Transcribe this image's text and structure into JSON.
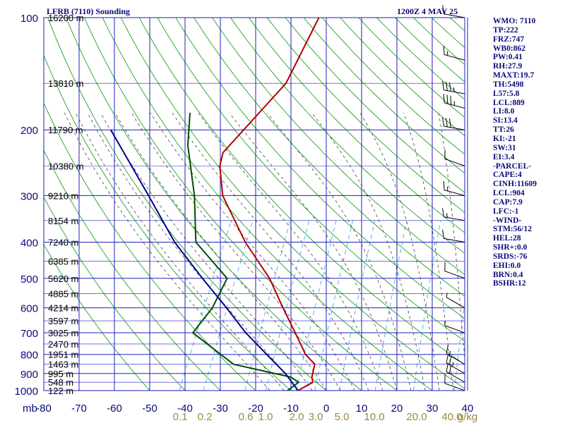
{
  "header": {
    "station_title": "LFRB (7110) Sounding",
    "datetime": "1200Z  4 MAY 25"
  },
  "chart_data": {
    "type": "line",
    "title": "LFRB (7110) Sounding",
    "diagram": "Skew-T log-P",
    "y_axis": {
      "quantity": "pressure",
      "unit_label": "mb",
      "scale": "log",
      "inverted": true,
      "ticks": [
        100,
        200,
        300,
        400,
        500,
        600,
        700,
        800,
        900,
        1000
      ],
      "range": [
        100,
        1000
      ]
    },
    "x_axis": {
      "quantity": "temperature",
      "unit": "°C",
      "ticks": [
        -80,
        -70,
        -60,
        -50,
        -40,
        -30,
        -20,
        -10,
        0,
        10,
        20,
        30,
        40
      ],
      "tick_labels": [
        "-80",
        "-70",
        "-60",
        "-50",
        "-40",
        "-30",
        "-20",
        "-10",
        "0",
        "10",
        "20",
        "30",
        "40"
      ]
    },
    "mixing_ratio_labels": {
      "unit": "g/kg",
      "labels": [
        "0.1",
        "0.2",
        "0.6",
        "1.0",
        "2.0",
        "3.0",
        "5.0",
        "10.0",
        "20.0",
        "40.0"
      ]
    },
    "height_labels": [
      {
        "p": 100,
        "text": "16200 m"
      },
      {
        "p": 150,
        "text": "13810 m"
      },
      {
        "p": 200,
        "text": "11790 m"
      },
      {
        "p": 250,
        "text": "10380 m"
      },
      {
        "p": 300,
        "text": "9210 m"
      },
      {
        "p": 350,
        "text": "8154 m"
      },
      {
        "p": 400,
        "text": "7240 m"
      },
      {
        "p": 450,
        "text": "6385 m"
      },
      {
        "p": 500,
        "text": "5620 m"
      },
      {
        "p": 550,
        "text": "4885 m"
      },
      {
        "p": 600,
        "text": "4214 m"
      },
      {
        "p": 650,
        "text": "3597 m"
      },
      {
        "p": 700,
        "text": "3025 m"
      },
      {
        "p": 750,
        "text": "2470 m"
      },
      {
        "p": 800,
        "text": "1951 m"
      },
      {
        "p": 850,
        "text": "1463 m"
      },
      {
        "p": 900,
        "text": "995 m"
      },
      {
        "p": 950,
        "text": "548 m"
      },
      {
        "p": 1000,
        "text": "122 m"
      }
    ],
    "series": [
      {
        "role": "temperature",
        "color": "#b00000",
        "points": [
          {
            "p": 1000,
            "t": -8
          },
          {
            "p": 950,
            "t": -5
          },
          {
            "p": 920,
            "t": -6
          },
          {
            "p": 850,
            "t": -7
          },
          {
            "p": 800,
            "t": -11
          },
          {
            "p": 700,
            "t": -17
          },
          {
            "p": 600,
            "t": -24
          },
          {
            "p": 500,
            "t": -32
          },
          {
            "p": 400,
            "t": -44
          },
          {
            "p": 300,
            "t": -57
          },
          {
            "p": 250,
            "t": -62
          },
          {
            "p": 230,
            "t": -63
          },
          {
            "p": 150,
            "t": -55
          },
          {
            "p": 100,
            "t": -55
          }
        ]
      },
      {
        "role": "dewpoint",
        "color": "#004d00",
        "points": [
          {
            "p": 1000,
            "t": -11
          },
          {
            "p": 950,
            "t": -9
          },
          {
            "p": 920,
            "t": -12
          },
          {
            "p": 850,
            "t": -30
          },
          {
            "p": 700,
            "t": -46
          },
          {
            "p": 600,
            "t": -44
          },
          {
            "p": 500,
            "t": -44
          },
          {
            "p": 400,
            "t": -58
          },
          {
            "p": 300,
            "t": -65
          },
          {
            "p": 220,
            "t": -74
          },
          {
            "p": 180,
            "t": -78
          }
        ]
      },
      {
        "role": "parcel",
        "color": "#00008b",
        "points": [
          {
            "p": 1000,
            "t": -8
          },
          {
            "p": 900,
            "t": -14
          },
          {
            "p": 800,
            "t": -22
          },
          {
            "p": 700,
            "t": -31
          },
          {
            "p": 600,
            "t": -40
          },
          {
            "p": 500,
            "t": -51
          },
          {
            "p": 400,
            "t": -64
          },
          {
            "p": 300,
            "t": -78
          },
          {
            "p": 200,
            "t": -98
          }
        ]
      }
    ],
    "winds": [
      {
        "p": 100,
        "dir": 280,
        "spd": 10
      },
      {
        "p": 130,
        "dir": 285,
        "spd": 15
      },
      {
        "p": 160,
        "dir": 280,
        "spd": 35
      },
      {
        "p": 175,
        "dir": 285,
        "spd": 35
      },
      {
        "p": 200,
        "dir": 280,
        "spd": 30
      },
      {
        "p": 250,
        "dir": 290,
        "spd": 10
      },
      {
        "p": 300,
        "dir": 285,
        "spd": 15
      },
      {
        "p": 350,
        "dir": 280,
        "spd": 15
      },
      {
        "p": 400,
        "dir": 280,
        "spd": 10
      },
      {
        "p": 500,
        "dir": 290,
        "spd": 10
      },
      {
        "p": 600,
        "dir": 300,
        "spd": 5
      },
      {
        "p": 700,
        "dir": 290,
        "spd": 5
      },
      {
        "p": 850,
        "dir": 300,
        "spd": 15
      },
      {
        "p": 900,
        "dir": 300,
        "spd": 25
      },
      {
        "p": 950,
        "dir": 300,
        "spd": 20
      },
      {
        "p": 1000,
        "dir": 290,
        "spd": 10
      }
    ],
    "grid": true,
    "colors": {
      "isobar": "#2222bb",
      "isotherm": "#2222bb",
      "dry_adiabat": "#22a022",
      "moist_adiabat": "#444444",
      "mixing_ratio": "#2aa0e8",
      "axis_text": "#0a0a7a"
    }
  },
  "indices": [
    "WMO: 7110",
    "TP:222",
    "FRZ:747",
    "WB0:862",
    "PW:0.41",
    "RH:27.9",
    "MAXT:19.7",
    "TH:5498",
    "L57:5.8",
    "LCL:889",
    "LI:8.0",
    "SI:13.4",
    "TT:26",
    "KI:-21",
    "SW:31",
    "EI:3.4",
    "-PARCEL-",
    "CAPE:4",
    "CINH:11609",
    "LCL:904",
    "CAP:7.9",
    "LFC:-1",
    "-WIND-",
    "STM:56/12",
    "HEL:28",
    "SHR+:0.0",
    "SRDS:-76",
    "EHI:0.0",
    "BRN:0.4",
    "BSHR:12"
  ]
}
